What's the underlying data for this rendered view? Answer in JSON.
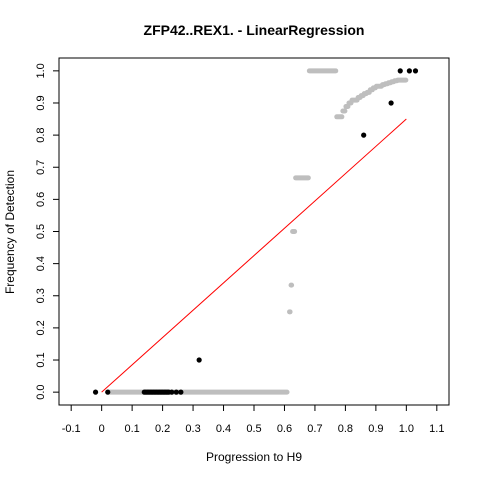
{
  "chart_data": {
    "type": "scatter",
    "title": "ZFP42..REX1. - LinearRegression",
    "xlabel": "Progression to H9",
    "ylabel": "Frequency of Detection",
    "xlim": [
      -0.14,
      1.14
    ],
    "ylim": [
      -0.04,
      1.04
    ],
    "x_ticks": [
      "-0.1",
      "0",
      "0.1",
      "0.2",
      "0.3",
      "0.4",
      "0.5",
      "0.6",
      "0.7",
      "0.8",
      "0.9",
      "1.0",
      "1.1"
    ],
    "y_ticks": [
      "0.0",
      "0.1",
      "0.2",
      "0.3",
      "0.4",
      "0.5",
      "0.6",
      "0.7",
      "0.8",
      "0.9",
      "1.0"
    ],
    "grid": false,
    "legend": "none",
    "colors": {
      "observed": "#000000",
      "smoothed": "#bebebe",
      "regression": "#ff0000"
    },
    "series": [
      {
        "kind": "gray-band",
        "points": [
          {
            "x_from": 0.02,
            "x_to": 0.61,
            "y": 0.0
          },
          {
            "x_from": 0.615,
            "x_to": 0.62,
            "y": 0.25
          },
          {
            "x_from": 0.62,
            "x_to": 0.625,
            "y": 0.333
          },
          {
            "x_from": 0.625,
            "x_to": 0.635,
            "y": 0.5
          },
          {
            "x_from": 0.635,
            "x_to": 0.68,
            "y": 0.667
          },
          {
            "x_from": 0.68,
            "x_to": 0.77,
            "y": 1.0
          },
          {
            "x_from": 0.77,
            "x_to": 0.79,
            "y": 0.857
          },
          {
            "x_from": 0.79,
            "x_to": 0.8,
            "y": 0.875
          },
          {
            "x_from": 0.8,
            "x_to": 0.81,
            "y": 0.889
          },
          {
            "x_from": 0.81,
            "x_to": 0.82,
            "y": 0.9
          },
          {
            "x_from": 0.82,
            "x_to": 0.84,
            "y": 0.909
          },
          {
            "x_from": 0.84,
            "x_to": 0.85,
            "y": 0.917
          },
          {
            "x_from": 0.85,
            "x_to": 0.86,
            "y": 0.923
          },
          {
            "x_from": 0.86,
            "x_to": 0.87,
            "y": 0.929
          },
          {
            "x_from": 0.87,
            "x_to": 0.88,
            "y": 0.933
          },
          {
            "x_from": 0.88,
            "x_to": 0.89,
            "y": 0.941
          },
          {
            "x_from": 0.89,
            "x_to": 0.9,
            "y": 0.947
          },
          {
            "x_from": 0.9,
            "x_to": 0.92,
            "y": 0.952
          },
          {
            "x_from": 0.92,
            "x_to": 0.93,
            "y": 0.957
          },
          {
            "x_from": 0.93,
            "x_to": 0.94,
            "y": 0.96
          },
          {
            "x_from": 0.94,
            "x_to": 0.95,
            "y": 0.963
          },
          {
            "x_from": 0.95,
            "x_to": 0.96,
            "y": 0.966
          },
          {
            "x_from": 0.96,
            "x_to": 0.97,
            "y": 0.969
          },
          {
            "x_from": 0.97,
            "x_to": 1.0,
            "y": 0.971
          }
        ]
      },
      {
        "kind": "observed-points",
        "points": [
          [
            -0.02,
            0.0
          ],
          [
            0.02,
            0.0
          ],
          [
            0.14,
            0.0
          ],
          [
            0.145,
            0.0
          ],
          [
            0.15,
            0.0
          ],
          [
            0.155,
            0.0
          ],
          [
            0.16,
            0.0
          ],
          [
            0.165,
            0.0
          ],
          [
            0.17,
            0.0
          ],
          [
            0.175,
            0.0
          ],
          [
            0.18,
            0.0
          ],
          [
            0.185,
            0.0
          ],
          [
            0.19,
            0.0
          ],
          [
            0.195,
            0.0
          ],
          [
            0.2,
            0.0
          ],
          [
            0.205,
            0.0
          ],
          [
            0.21,
            0.0
          ],
          [
            0.215,
            0.0
          ],
          [
            0.22,
            0.0
          ],
          [
            0.23,
            0.0
          ],
          [
            0.245,
            0.0
          ],
          [
            0.26,
            0.0
          ],
          [
            0.32,
            0.1
          ],
          [
            0.86,
            0.8
          ],
          [
            0.95,
            0.9
          ],
          [
            0.98,
            1.0
          ],
          [
            1.01,
            1.0
          ],
          [
            1.03,
            1.0
          ]
        ]
      },
      {
        "kind": "regression-line",
        "from": [
          0.0,
          0.0
        ],
        "to": [
          1.0,
          0.85
        ]
      }
    ]
  }
}
